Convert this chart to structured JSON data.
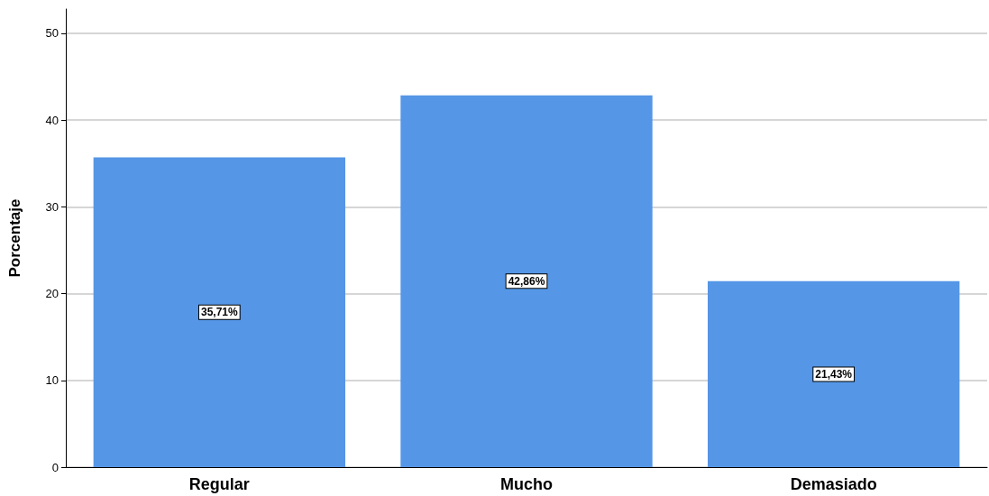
{
  "chart_data": {
    "type": "bar",
    "ylabel": "Porcentaje",
    "categories": [
      "Regular",
      "Mucho",
      "Demasiado"
    ],
    "values": [
      35.71,
      42.86,
      21.43
    ],
    "value_labels": [
      "35,71%",
      "42,86%",
      "21,43%"
    ],
    "color": "#5596e6",
    "ylim": [
      0,
      52.8
    ],
    "yticks": [
      0,
      10,
      20,
      30,
      40,
      50
    ],
    "grid": "y"
  }
}
